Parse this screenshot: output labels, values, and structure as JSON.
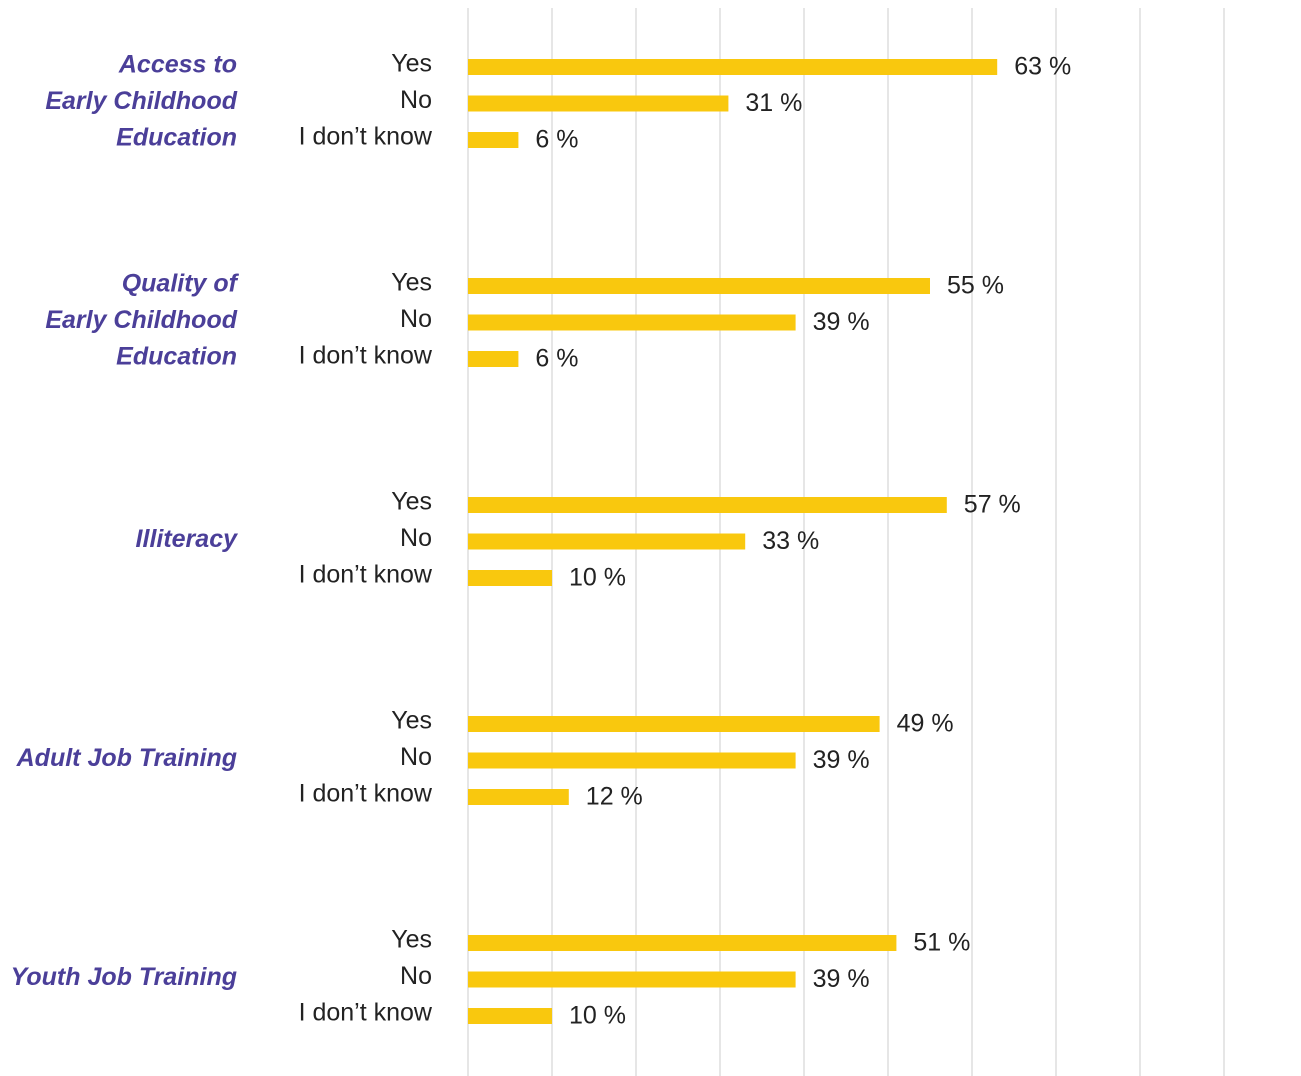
{
  "chart_data": {
    "type": "grouped-hbar",
    "color": "#f9c80e",
    "grid": true,
    "xlim": [
      0,
      90
    ],
    "xticks": [
      0,
      10,
      20,
      30,
      40,
      50,
      60,
      70,
      80,
      90
    ],
    "groups": [
      {
        "name": [
          "Access to",
          "Early Childhood",
          "Education"
        ],
        "categories": [
          "Yes",
          "No",
          "I don’t know"
        ],
        "values": [
          63,
          31,
          6
        ],
        "value_labels": [
          "63 %",
          "31 %",
          "6 %"
        ]
      },
      {
        "name": [
          "Quality of",
          "Early Childhood",
          "Education"
        ],
        "categories": [
          "Yes",
          "No",
          "I don’t know"
        ],
        "values": [
          55,
          39,
          6
        ],
        "value_labels": [
          "55 %",
          "39 %",
          "6 %"
        ]
      },
      {
        "name": [
          "Illiteracy"
        ],
        "categories": [
          "Yes",
          "No",
          "I don’t know"
        ],
        "values": [
          57,
          33,
          10
        ],
        "value_labels": [
          "57 %",
          "33 %",
          "10 %"
        ]
      },
      {
        "name": [
          "Adult Job Training"
        ],
        "categories": [
          "Yes",
          "No",
          "I don’t know"
        ],
        "values": [
          49,
          39,
          12
        ],
        "value_labels": [
          "49 %",
          "39 %",
          "12 %"
        ]
      },
      {
        "name": [
          "Youth Job Training"
        ],
        "categories": [
          "Yes",
          "No",
          "I don’t know"
        ],
        "values": [
          51,
          39,
          10
        ],
        "value_labels": [
          "51 %",
          "39 %",
          "10 %"
        ]
      }
    ]
  }
}
